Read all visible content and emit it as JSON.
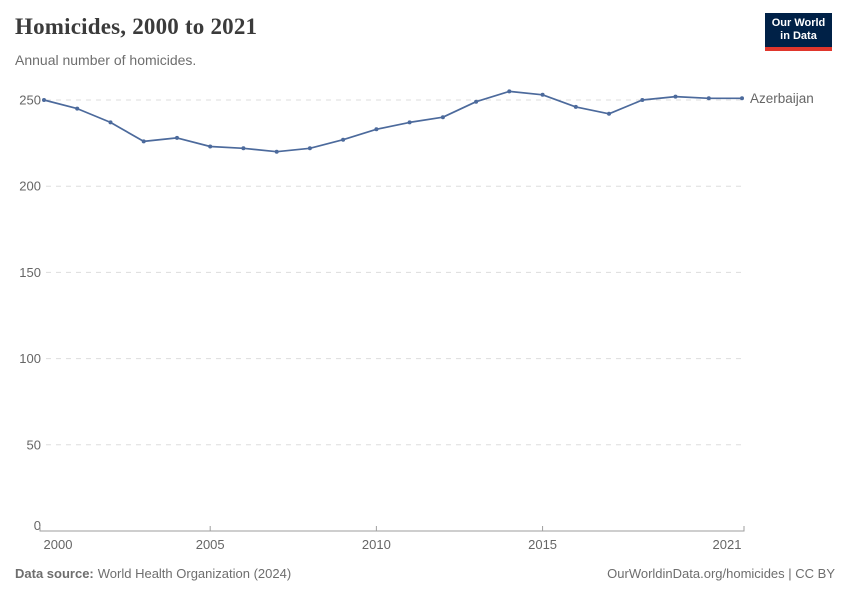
{
  "page": {
    "title": "Homicides, 2000 to 2021",
    "subtitle": "Annual number of homicides."
  },
  "logo": {
    "line1": "Our World",
    "line2": "in Data",
    "bg_color": "#002147",
    "accent_color": "#e0362c"
  },
  "footer": {
    "source_label": "Data source:",
    "source_value": "World Health Organization (2024)",
    "attribution": "OurWorldinData.org/homicides | CC BY"
  },
  "chart_data": {
    "type": "line",
    "title": "Homicides, 2000 to 2021",
    "subtitle": "Annual number of homicides.",
    "x": [
      2000,
      2001,
      2002,
      2003,
      2004,
      2005,
      2006,
      2007,
      2008,
      2009,
      2010,
      2011,
      2012,
      2013,
      2014,
      2015,
      2016,
      2017,
      2018,
      2019,
      2020,
      2021
    ],
    "series": [
      {
        "name": "Azerbaijan",
        "color": "#4c6a9c",
        "values": [
          250,
          245,
          237,
          226,
          228,
          223,
          222,
          220,
          222,
          227,
          233,
          237,
          240,
          249,
          255,
          253,
          246,
          242,
          250,
          252,
          251,
          251
        ]
      }
    ],
    "xlabel": "",
    "ylabel": "",
    "xticks": [
      2000,
      2005,
      2010,
      2015,
      2021
    ],
    "yticks": [
      0,
      50,
      100,
      150,
      200,
      250
    ],
    "ylim": [
      0,
      257
    ],
    "grid": "horizontal-dashed",
    "grid_color": "#dddddd",
    "axis_color": "#9e9e9e",
    "tick_label_color": "#666666",
    "legend_position": "end-of-line"
  }
}
